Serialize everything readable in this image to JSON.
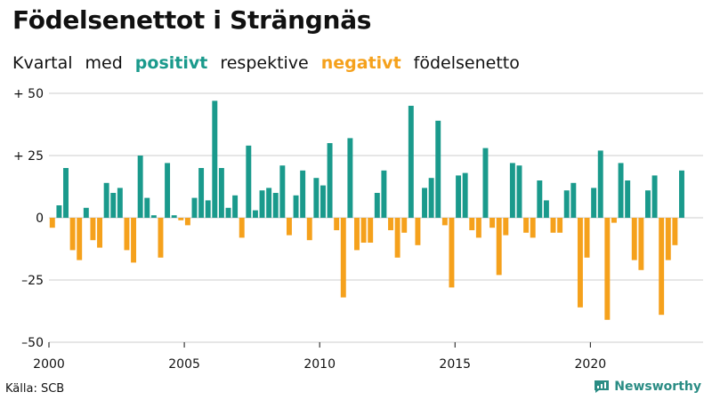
{
  "title": "Födelsenettot i Strängnäs",
  "subtitle": {
    "w1": "Kvartal",
    "w2": "med",
    "positive": "positivt",
    "w3": "respektive",
    "negative": "negativt",
    "w4": "födelsenetto"
  },
  "source": "Källa: SCB",
  "brand": "Newsworthy",
  "colors": {
    "positive": "#1a9a8c",
    "negative": "#f5a11c",
    "grid": "#cccccc"
  },
  "chart_data": {
    "type": "bar",
    "x_start_year": 2000,
    "x_end_year": 2024,
    "ylim": [
      -50,
      50
    ],
    "y_ticks": [
      {
        "value": 50,
        "label": "+ 50"
      },
      {
        "value": 25,
        "label": "+ 25"
      },
      {
        "value": 0,
        "label": "0"
      },
      {
        "value": -25,
        "label": "–25"
      },
      {
        "value": -50,
        "label": "–50"
      }
    ],
    "x_ticks": [
      "2000",
      "2005",
      "2010",
      "2015",
      "2020"
    ],
    "grid": true,
    "series": [
      {
        "values": [
          -4,
          5,
          20,
          -13,
          -17,
          4,
          -9,
          -12,
          14,
          10,
          12,
          -13,
          -18,
          25,
          8,
          1,
          -16,
          22,
          1,
          -1,
          -3,
          8,
          20,
          7,
          47,
          20,
          4,
          9,
          -8,
          29,
          3,
          11,
          12,
          10,
          21,
          -7,
          9,
          19,
          -9,
          16,
          13,
          30,
          -5,
          -32,
          32,
          -13,
          -10,
          -10,
          10,
          19,
          -5,
          -16,
          -6,
          45,
          -11,
          12,
          16,
          39,
          -3,
          -28,
          17,
          18,
          -5,
          -8,
          28,
          -4,
          -23,
          -7,
          22,
          21,
          -6,
          -8,
          15,
          7,
          -6,
          -6,
          11,
          14,
          -36,
          -16,
          12,
          27,
          -41,
          -2,
          22,
          15,
          -17,
          -21,
          11,
          17,
          -39,
          -17,
          -11,
          19
        ]
      }
    ]
  }
}
